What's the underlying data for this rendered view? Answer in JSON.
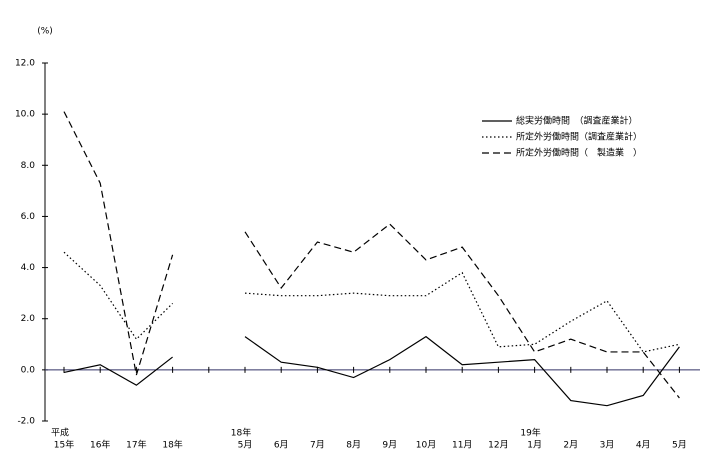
{
  "chart_data": {
    "type": "line",
    "ylabel": "(%)",
    "categories_top": [
      "平成",
      null,
      null,
      null,
      null,
      "18年",
      null,
      null,
      null,
      null,
      null,
      null,
      null,
      "19年",
      null,
      null,
      null,
      null
    ],
    "categories": [
      "15年",
      "16年",
      "17年",
      "18年",
      null,
      "5月",
      "6月",
      "7月",
      "8月",
      "9月",
      "10月",
      "11月",
      "12月",
      "1月",
      "2月",
      "3月",
      "4月",
      "5月"
    ],
    "series": [
      {
        "name": "総実労働時間　（調査産業計）",
        "color": "#000000",
        "dash": "solid",
        "values": [
          -0.1,
          0.2,
          -0.6,
          0.5,
          null,
          1.3,
          0.3,
          0.1,
          -0.3,
          0.4,
          1.3,
          0.2,
          0.3,
          0.4,
          -1.2,
          -1.4,
          -1.0,
          0.9
        ]
      },
      {
        "name": "所定外労働時間（調査産業計）",
        "color": "#000000",
        "dash": "dotted",
        "values": [
          4.6,
          3.3,
          1.2,
          2.6,
          null,
          3.0,
          2.9,
          2.9,
          3.0,
          2.9,
          2.9,
          3.8,
          0.9,
          1.0,
          1.9,
          2.7,
          0.7,
          1.0
        ]
      },
      {
        "name": "所定外労働時間（　製造業　）",
        "color": "#000000",
        "dash": "dashed",
        "values": [
          10.1,
          7.3,
          -0.2,
          4.5,
          null,
          5.4,
          3.2,
          5.0,
          4.6,
          5.7,
          4.3,
          4.8,
          2.9,
          0.7,
          1.2,
          0.7,
          0.7,
          -1.1
        ]
      }
    ],
    "ylim": [
      -2,
      12
    ],
    "yticks": [
      {
        "value": -2,
        "label": "-2.0"
      },
      {
        "value": 0,
        "label": "0.0"
      },
      {
        "value": 2,
        "label": "2.0"
      },
      {
        "value": 4,
        "label": "4.0"
      },
      {
        "value": 6,
        "label": "6.0"
      },
      {
        "value": 8,
        "label": "8.0"
      },
      {
        "value": 10,
        "label": "10.0"
      },
      {
        "value": 12,
        "label": "12.0"
      }
    ],
    "grid": false
  }
}
